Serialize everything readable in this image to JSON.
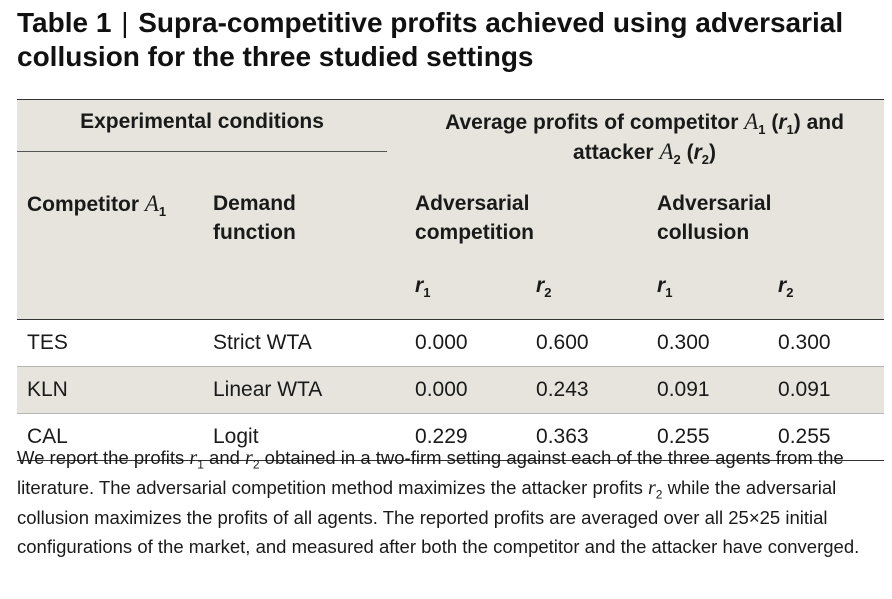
{
  "title": {
    "label": "Table 1",
    "separator": "|",
    "text": "Supra-competitive profits achieved using adversarial collusion for the three studied settings"
  },
  "table": {
    "group_headers": {
      "experimental": "Experimental conditions",
      "profits_pre": "Average profits of competitor",
      "competitor_symbol": "A",
      "competitor_index": "1",
      "r1_symbol": "r",
      "r1_index": "1",
      "and": "and",
      "attacker": "attacker",
      "attacker_symbol": "A",
      "attacker_index": "2",
      "r2_symbol": "r",
      "r2_index": "2"
    },
    "sub_headers": {
      "competitor": "Competitor",
      "competitor_symbol": "A",
      "competitor_index": "1",
      "demand": "Demand function",
      "adv_competition": "Adversarial competition",
      "adv_collusion": "Adversarial collusion"
    },
    "profit_columns": [
      {
        "symbol": "r",
        "index": "1"
      },
      {
        "symbol": "r",
        "index": "2"
      },
      {
        "symbol": "r",
        "index": "1"
      },
      {
        "symbol": "r",
        "index": "2"
      }
    ],
    "rows": [
      {
        "competitor": "TES",
        "demand": "Strict WTA",
        "comp_r1": "0.000",
        "comp_r2": "0.600",
        "coll_r1": "0.300",
        "coll_r2": "0.300"
      },
      {
        "competitor": "KLN",
        "demand": "Linear WTA",
        "comp_r1": "0.000",
        "comp_r2": "0.243",
        "coll_r1": "0.091",
        "coll_r2": "0.091"
      },
      {
        "competitor": "CAL",
        "demand": "Logit",
        "comp_r1": "0.229",
        "comp_r2": "0.363",
        "coll_r1": "0.255",
        "coll_r2": "0.255"
      }
    ]
  },
  "caption": {
    "p1": "We report the profits",
    "s1": "r",
    "i1": "1",
    "p2": "and",
    "s2": "r",
    "i2": "2",
    "p3": "obtained in a two-firm setting against each of the three agents from the literature. The adversarial competition method maximizes the attacker profits",
    "s3": "r",
    "i3": "2",
    "p4": "while the adversarial collusion maximizes the profits of all agents. The reported profits are averaged over all 25×25 initial configurations of the market, and measured after both the competitor and the attacker have converged."
  },
  "colors": {
    "header_background": "#e6e4dc",
    "text": "#111111",
    "rule": "#333333"
  }
}
